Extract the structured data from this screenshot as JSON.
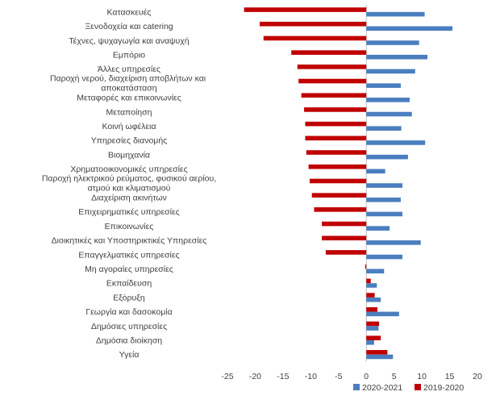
{
  "chart_data": {
    "type": "bar",
    "orientation": "horizontal",
    "grid": false,
    "legend_position": "bottom-right",
    "xlim": [
      -25,
      20
    ],
    "xticks": [
      -25,
      -20,
      -15,
      -10,
      -5,
      0,
      5,
      10,
      15,
      20
    ],
    "categories": [
      "Κατασκευές",
      "Ξενοδοχεία και catering",
      "Τέχνες, ψυχαγωγία και αναψυχή",
      "Εμπόριο",
      "Άλλες υπηρεσίες",
      "Παροχή νερού, διαχείριση αποβλήτων και  αποκατάσταση",
      "Μεταφορές και επικοινωνίες",
      "Μεταποίηση",
      "Κοινή ωφέλεια",
      "Υπηρεσίες διανομής",
      "Βιομηχανία",
      "Χρηματοοικονομικές υπηρεσίες",
      "Παροχή ηλεκτρικού ρεύματος, φυσικού αερίου, ατμού και κλιματισμού",
      "Διαχείριση ακινήτων",
      "Επιχειρηματικές υπηρεσίες",
      "Επικοινωνίες",
      "Διοικητικές και Υποστηρικτικές Υπηρεσίες",
      "Επαγγελματικές υπηρεσίες",
      "Μη αγοραίες υπηρεσίες",
      "Εκπαίδευση",
      "Εξόρυξη",
      "Γεωργία και δασοκομία",
      "Δημόσιες υπηρεσίες",
      "Δημόσια διοίκηση",
      "Υγεία"
    ],
    "series": [
      {
        "name": "2020-2021",
        "color": "#4a7ebf",
        "values": [
          10.5,
          15.5,
          9.5,
          11.0,
          8.8,
          6.2,
          7.8,
          8.2,
          6.3,
          10.6,
          7.5,
          3.4,
          6.5,
          6.2,
          6.5,
          4.2,
          9.8,
          6.5,
          3.2,
          1.9,
          2.6,
          5.9,
          2.2,
          1.4,
          4.8
        ]
      },
      {
        "name": "2019-2020",
        "color": "#c00000",
        "values": [
          -22.0,
          -19.2,
          -18.5,
          -13.5,
          -12.4,
          -12.2,
          -11.7,
          -11.2,
          -11.0,
          -11.0,
          -10.8,
          -10.4,
          -10.2,
          -9.8,
          -9.4,
          -8.0,
          -8.0,
          -7.3,
          -0.2,
          0.8,
          1.5,
          2.0,
          2.3,
          2.6,
          3.8
        ]
      }
    ]
  }
}
